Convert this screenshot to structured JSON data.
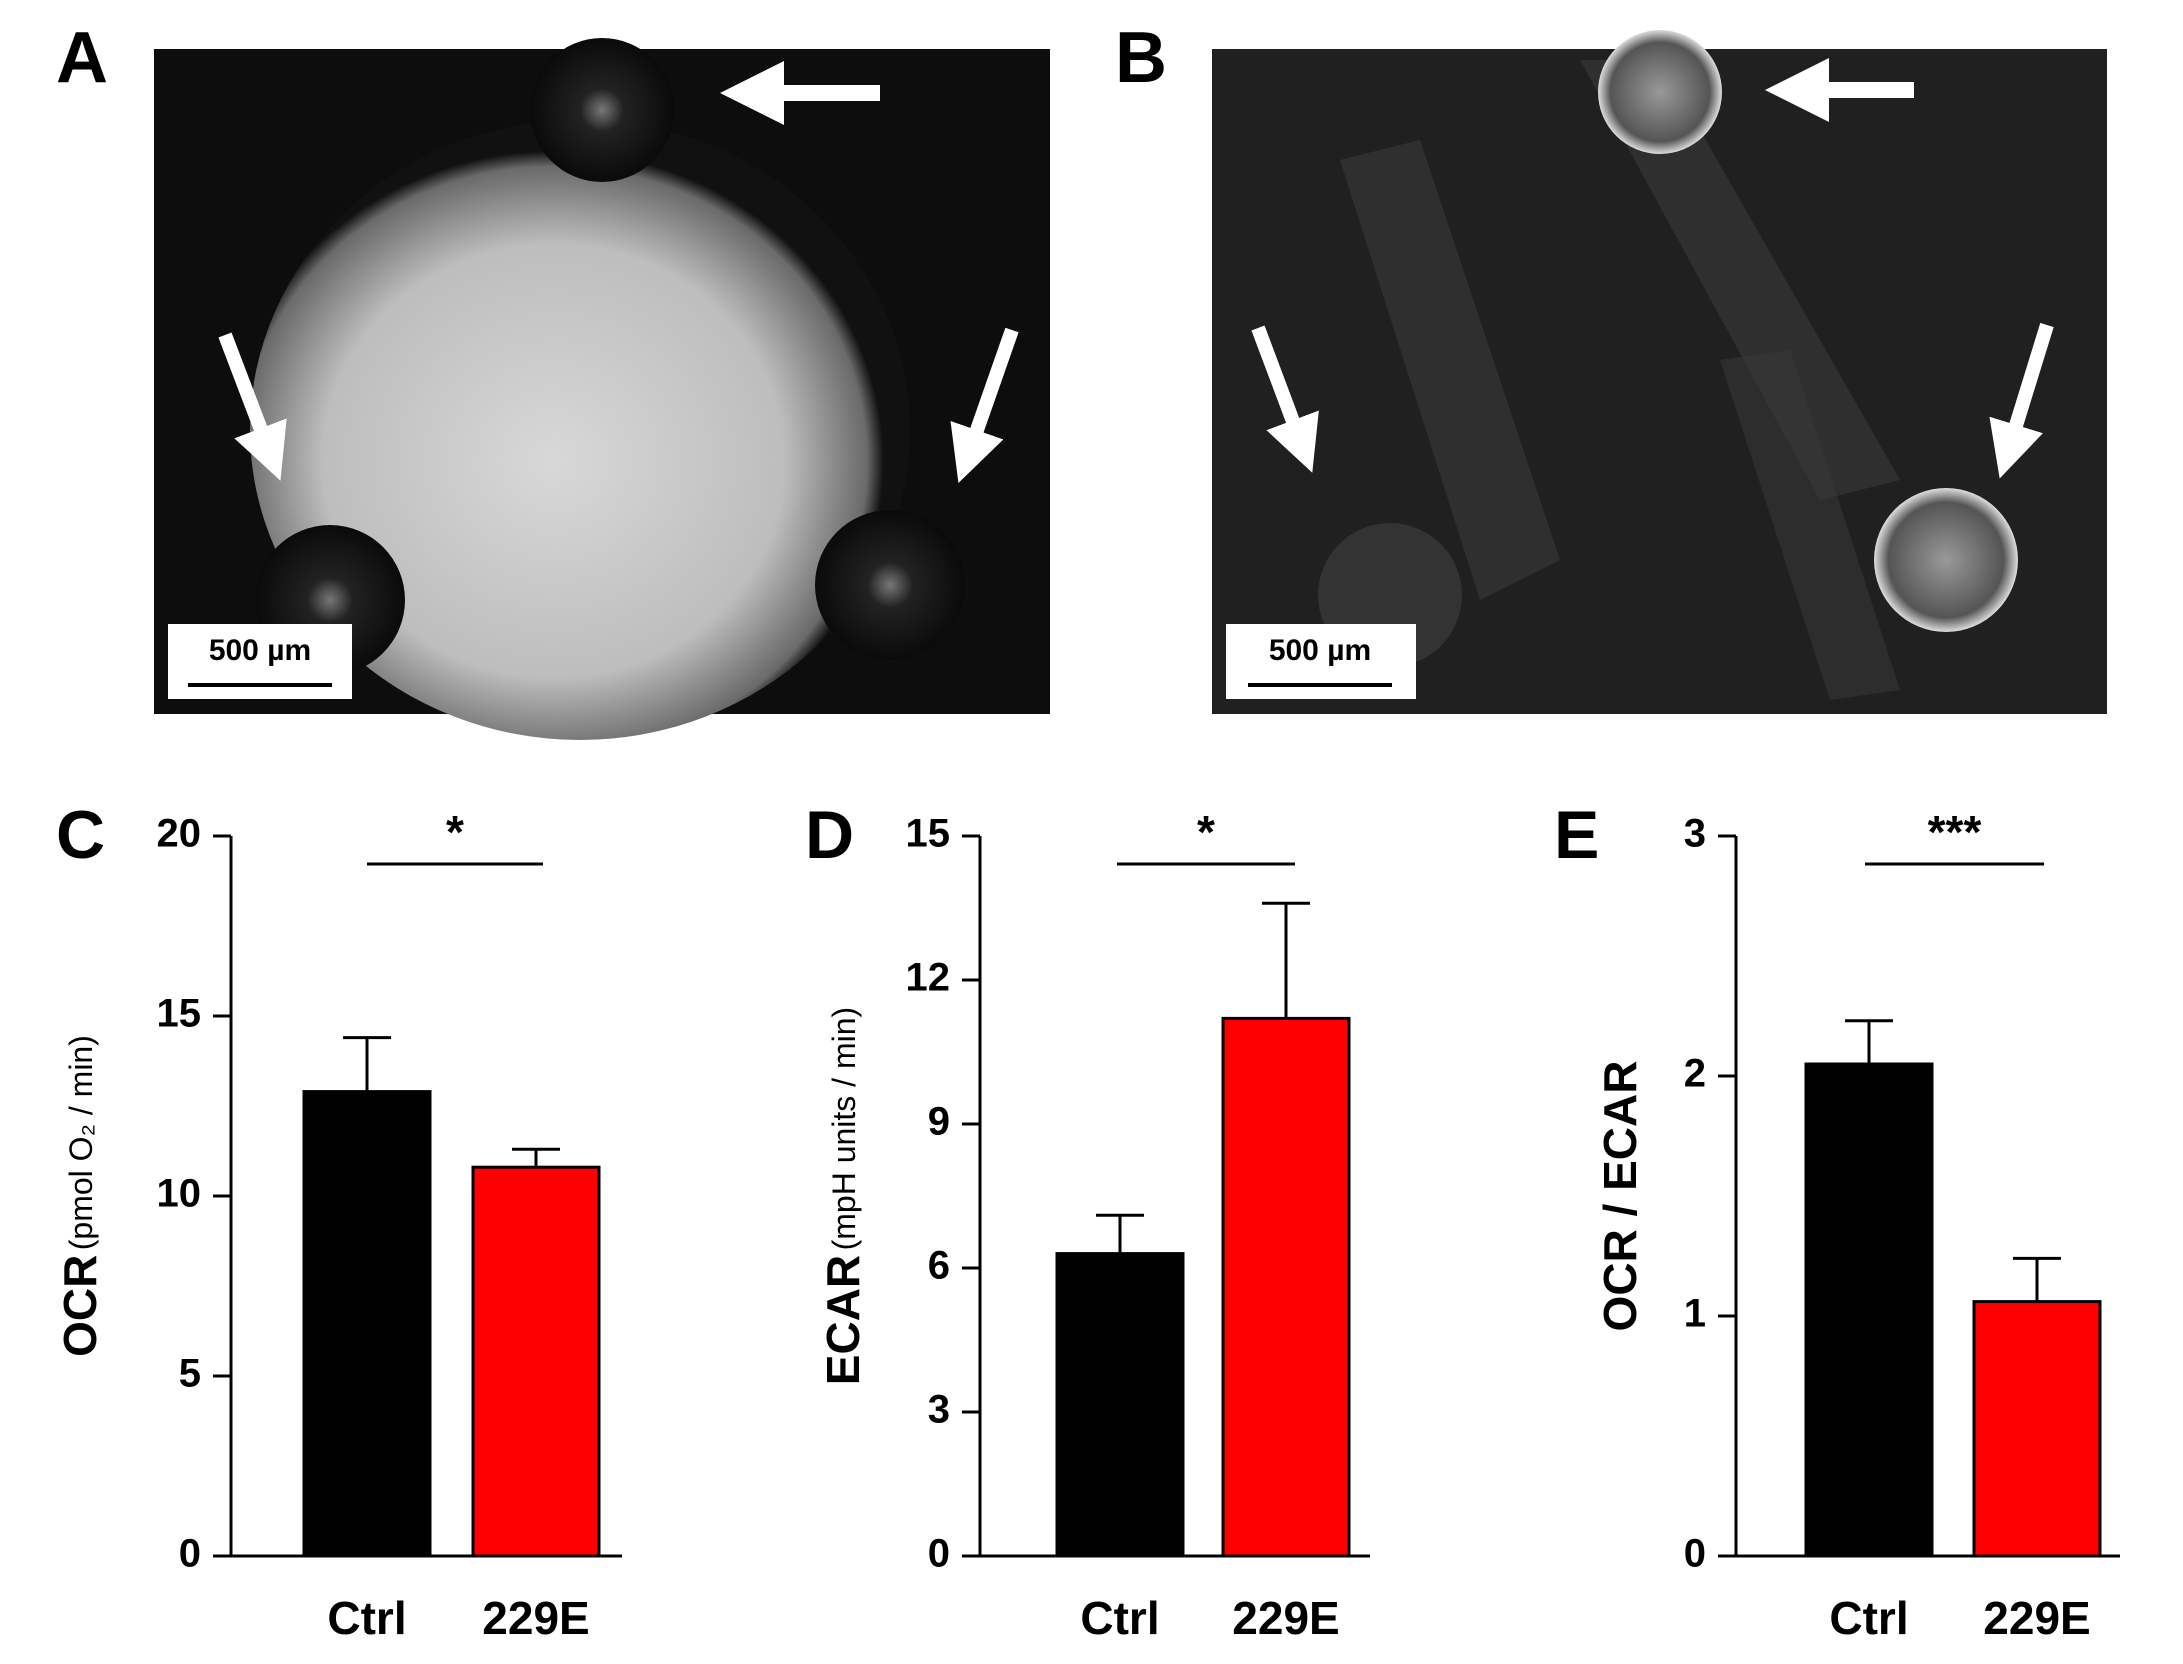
{
  "images": [
    {
      "label": "A",
      "scale_bar": "500 µm"
    },
    {
      "label": "B",
      "scale_bar": "500 µm"
    }
  ],
  "chart_data": [
    {
      "type": "bar",
      "panel": "C",
      "y_label": "OCR",
      "y_label_unit": "(pmol O₂ / min)",
      "categories": [
        "Ctrl",
        "229E"
      ],
      "values": [
        12.9,
        10.8
      ],
      "errors": [
        1.5,
        0.5
      ],
      "colors": [
        "#000000",
        "#ff0000"
      ],
      "ylim": [
        0,
        20
      ],
      "yticks": [
        0,
        5,
        10,
        15,
        20
      ],
      "significance": "*"
    },
    {
      "type": "bar",
      "panel": "D",
      "y_label": "ECAR",
      "y_label_unit": "(mpH units / min)",
      "categories": [
        "Ctrl",
        "229E"
      ],
      "values": [
        6.3,
        11.2
      ],
      "errors": [
        0.8,
        2.4
      ],
      "colors": [
        "#000000",
        "#ff0000"
      ],
      "ylim": [
        0,
        15
      ],
      "yticks": [
        0,
        3,
        6,
        9,
        12,
        15
      ],
      "significance": "*"
    },
    {
      "type": "bar",
      "panel": "E",
      "y_label": "OCR / ECAR",
      "categories": [
        "Ctrl",
        "229E"
      ],
      "values": [
        2.05,
        1.06
      ],
      "errors": [
        0.18,
        0.18
      ],
      "colors": [
        "#000000",
        "#ff0000"
      ],
      "ylim": [
        0,
        3
      ],
      "yticks": [
        0,
        1,
        2,
        3
      ],
      "significance": "***"
    }
  ]
}
